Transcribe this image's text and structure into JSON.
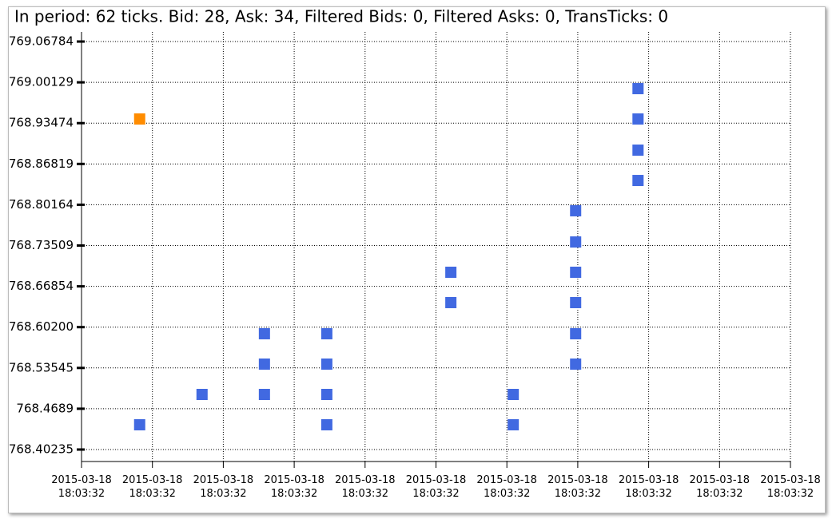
{
  "chart_data": {
    "type": "scatter",
    "title": "In period: 62 ticks. Bid: 28, Ask: 34, Filtered Bids: 0, Filtered Asks: 0, TransTicks: 0",
    "xlim": [
      0,
      10
    ],
    "xticks": [
      {
        "value": 0,
        "label": "2015-03-18 18:03:32"
      },
      {
        "value": 1,
        "label": "2015-03-18 18:03:32"
      },
      {
        "value": 2,
        "label": "2015-03-18 18:03:32"
      },
      {
        "value": 3,
        "label": "2015-03-18 18:03:32"
      },
      {
        "value": 4,
        "label": "2015-03-18 18:03:32"
      },
      {
        "value": 5,
        "label": "2015-03-18 18:03:32"
      },
      {
        "value": 6,
        "label": "2015-03-18 18:03:32"
      },
      {
        "value": 7,
        "label": "2015-03-18 18:03:32"
      },
      {
        "value": 8,
        "label": "2015-03-18 18:03:32"
      },
      {
        "value": 9,
        "label": "2015-03-18 18:03:32"
      },
      {
        "value": 10,
        "label": "2015-03-18 18:03:32"
      }
    ],
    "ylim": [
      768.3828,
      769.0835
    ],
    "yticks": [
      768.40235,
      768.4689,
      768.53545,
      {
        "value": 768.602,
        "label": "768.60200"
      },
      768.66854,
      768.73509,
      768.80164,
      768.86819,
      768.93474,
      769.00129,
      769.06784
    ],
    "grid": true,
    "series": [
      {
        "color": "#ff8c00",
        "x": [
          0.82
        ],
        "values": [
          768.9415
        ]
      },
      {
        "color": "#4169e1",
        "x": [
          0.82,
          1.7,
          2.58,
          2.58,
          2.58,
          3.46,
          3.46,
          3.46,
          3.46,
          5.21,
          5.21,
          6.09,
          6.09,
          6.97,
          6.97,
          6.97,
          6.97,
          6.97,
          6.97,
          7.85,
          7.85,
          7.85,
          7.85
        ],
        "values": [
          768.4427,
          768.4922,
          768.5912,
          768.5417,
          768.4922,
          768.5912,
          768.5417,
          768.4922,
          768.4427,
          768.6915,
          768.642,
          768.4922,
          768.4427,
          768.7918,
          768.7409,
          768.6915,
          768.642,
          768.5912,
          768.5417,
          768.991,
          768.9415,
          768.8907,
          768.8412
        ]
      }
    ]
  }
}
